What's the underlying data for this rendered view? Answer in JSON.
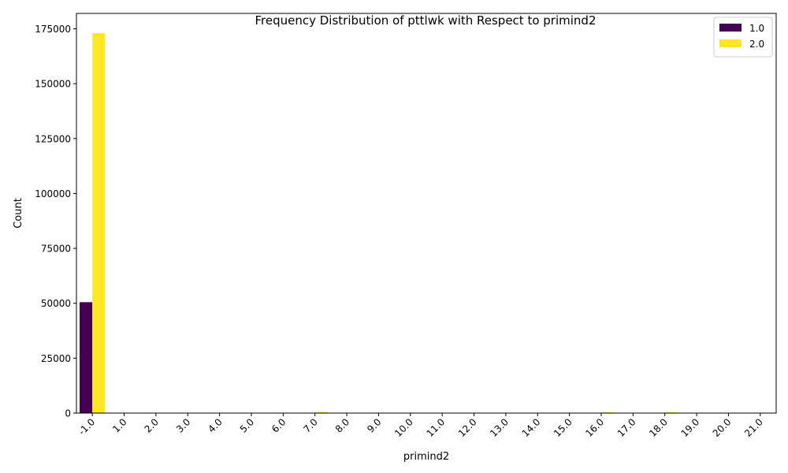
{
  "chart_data": {
    "type": "bar",
    "title": "Frequency Distribution of pttlwk with Respect to primind2",
    "xlabel": "primind2",
    "ylabel": "Count",
    "categories": [
      "-1.0",
      "1.0",
      "2.0",
      "3.0",
      "4.0",
      "5.0",
      "6.0",
      "7.0",
      "8.0",
      "9.0",
      "10.0",
      "11.0",
      "12.0",
      "13.0",
      "14.0",
      "15.0",
      "16.0",
      "17.0",
      "18.0",
      "19.0",
      "20.0",
      "21.0"
    ],
    "series": [
      {
        "name": "1.0",
        "color": "#440154",
        "values": [
          50500,
          0,
          0,
          0,
          0,
          0,
          0,
          60,
          0,
          0,
          0,
          0,
          0,
          0,
          0,
          0,
          80,
          0,
          60,
          0,
          0,
          0
        ]
      },
      {
        "name": "2.0",
        "color": "#fde725",
        "values": [
          173000,
          40,
          30,
          30,
          30,
          30,
          40,
          500,
          50,
          30,
          40,
          30,
          40,
          30,
          30,
          40,
          400,
          50,
          400,
          30,
          30,
          30
        ]
      }
    ],
    "ylim": [
      0,
      182000
    ],
    "yticks": [
      0,
      25000,
      50000,
      75000,
      100000,
      125000,
      150000,
      175000
    ],
    "ytick_labels": [
      "0",
      "25000",
      "50000",
      "75000",
      "100000",
      "125000",
      "150000",
      "175000"
    ],
    "legend_position": "top-right",
    "grid": false
  }
}
